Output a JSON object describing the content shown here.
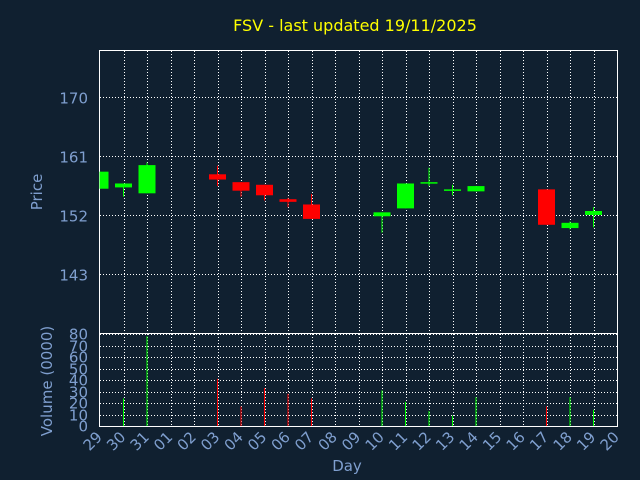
{
  "chart_data": {
    "type": "candlestick",
    "title": "FSV - last updated 19/11/2025",
    "xlabel": "Day",
    "price_panel": {
      "ylabel": "Price",
      "yticks": [
        143,
        152,
        161,
        170
      ],
      "ylim": [
        134,
        177
      ],
      "grid": true
    },
    "volume_panel": {
      "ylabel": "Volume (0000)",
      "yticks": [
        0,
        10,
        20,
        30,
        40,
        50,
        60,
        70,
        80
      ],
      "ylim": [
        0,
        80
      ],
      "grid": true
    },
    "categories": [
      "29",
      "30",
      "31",
      "01",
      "02",
      "03",
      "04",
      "05",
      "06",
      "07",
      "08",
      "09",
      "10",
      "11",
      "12",
      "13",
      "14",
      "15",
      "16",
      "17",
      "18",
      "19",
      "20"
    ],
    "candles": [
      {
        "day": "29",
        "open": 156.0,
        "high": 158.6,
        "low": 156.0,
        "close": 158.6,
        "volume": 0
      },
      {
        "day": "30",
        "open": 156.2,
        "high": 156.8,
        "low": 154.8,
        "close": 156.8,
        "volume": 24
      },
      {
        "day": "31",
        "open": 155.3,
        "high": 160.0,
        "low": 155.3,
        "close": 159.6,
        "volume": 78
      },
      {
        "day": "03",
        "open": 158.2,
        "high": 159.5,
        "low": 156.4,
        "close": 157.4,
        "volume": 41
      },
      {
        "day": "04",
        "open": 157.0,
        "high": 157.0,
        "low": 154.8,
        "close": 155.7,
        "volume": 17
      },
      {
        "day": "05",
        "open": 156.6,
        "high": 156.6,
        "low": 154.2,
        "close": 155.0,
        "volume": 33
      },
      {
        "day": "06",
        "open": 154.4,
        "high": 154.6,
        "low": 153.2,
        "close": 154.0,
        "volume": 28
      },
      {
        "day": "07",
        "open": 153.6,
        "high": 155.2,
        "low": 151.4,
        "close": 151.4,
        "volume": 24
      },
      {
        "day": "10",
        "open": 151.8,
        "high": 152.4,
        "low": 149.3,
        "close": 152.4,
        "volume": 31
      },
      {
        "day": "11",
        "open": 153.0,
        "high": 156.8,
        "low": 153.0,
        "close": 156.8,
        "volume": 21
      },
      {
        "day": "12",
        "open": 156.8,
        "high": 159.2,
        "low": 156.4,
        "close": 157.0,
        "volume": 13
      },
      {
        "day": "13",
        "open": 155.9,
        "high": 156.6,
        "low": 155.0,
        "close": 155.9,
        "volume": 9
      },
      {
        "day": "14",
        "open": 155.6,
        "high": 156.4,
        "low": 155.6,
        "close": 156.4,
        "volume": 25
      },
      {
        "day": "17",
        "open": 155.9,
        "high": 155.9,
        "low": 150.5,
        "close": 150.5,
        "volume": 17
      },
      {
        "day": "18",
        "open": 150.0,
        "high": 151.0,
        "low": 149.8,
        "close": 150.8,
        "volume": 25
      },
      {
        "day": "19",
        "open": 152.0,
        "high": 153.2,
        "low": 150.1,
        "close": 152.6,
        "volume": 14
      }
    ],
    "colors": {
      "up": "#00ff00",
      "down": "#ff0000",
      "title": "#ffff00",
      "axis_text": "#7f9fcf",
      "grid": "#ffffff",
      "background": "#102030"
    }
  }
}
